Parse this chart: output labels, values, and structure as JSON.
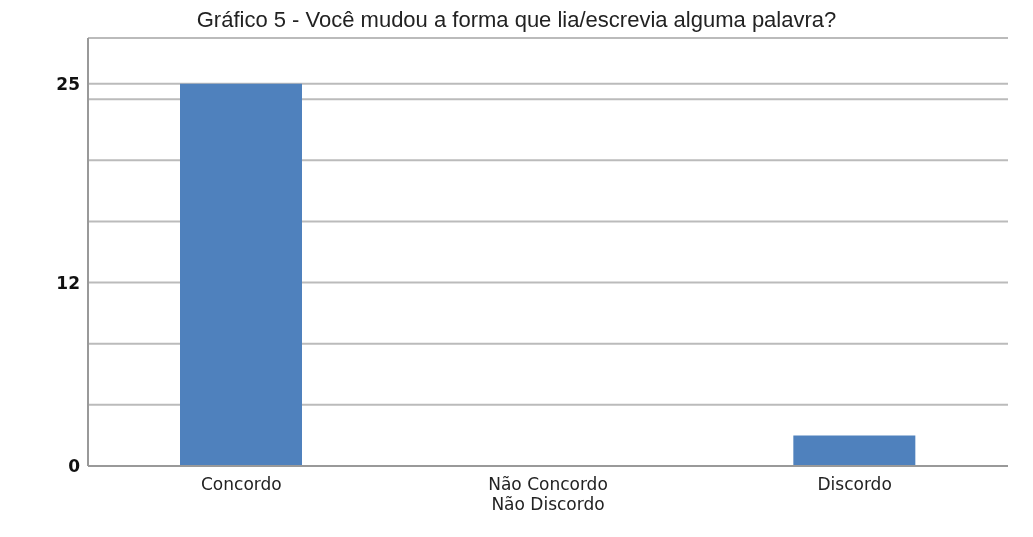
{
  "chart_data": {
    "type": "bar",
    "title": "Gráfico 5 - Você mudou a forma que lia/escrevia alguma palavra?",
    "categories": [
      "Concordo",
      "Não Concordo\nNão Discordo",
      "Discordo"
    ],
    "values": [
      25,
      0,
      2
    ],
    "color": "#4f81bd",
    "ylim": [
      0,
      28
    ],
    "yticks": [
      0,
      {
        "value": 4,
        "label": null
      },
      {
        "value": 8,
        "label": null
      },
      12,
      {
        "value": 16,
        "label": null
      },
      {
        "value": 20,
        "label": null
      },
      {
        "value": 24,
        "label": null
      },
      25,
      {
        "value": 28,
        "label": null
      }
    ],
    "grid": "y",
    "legend": false
  }
}
